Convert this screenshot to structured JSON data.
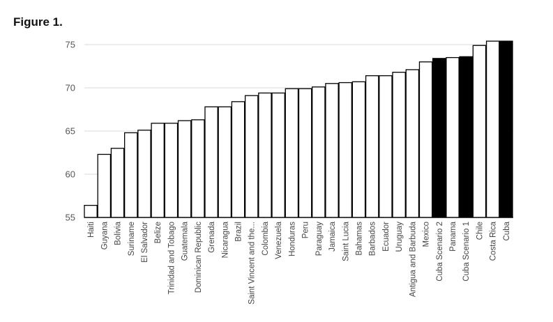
{
  "figure_label": "Figure 1.",
  "chart_data": {
    "type": "bar",
    "categories": [
      "Haiti",
      "Guyana",
      "Bolivia",
      "Suriname",
      "El Salvador",
      "Belize",
      "Trinidad and Tobago",
      "Guatemala",
      "Dominican Republic",
      "Grenada",
      "Nicaragua",
      "Brazil",
      "Saint Vincent and the...",
      "Colombia",
      "Venezuela",
      "Honduras",
      "Peru",
      "Paraguay",
      "Jamaica",
      "Saint Lucia",
      "Bahamas",
      "Barbados",
      "Ecuador",
      "Uruguay",
      "Antigua and Barbuda",
      "Mexico",
      "Cuba Scenario 2",
      "Panama",
      "Cuba Scenario 1",
      "Chile",
      "Costa Rica",
      "Cuba"
    ],
    "values": [
      56.4,
      62.3,
      63.0,
      64.8,
      65.1,
      65.9,
      65.9,
      66.2,
      66.3,
      67.8,
      67.8,
      68.4,
      69.1,
      69.4,
      69.4,
      69.9,
      69.9,
      70.1,
      70.5,
      70.6,
      70.7,
      71.4,
      71.4,
      71.8,
      72.1,
      73.0,
      73.4,
      73.5,
      73.6,
      74.9,
      75.4,
      75.4
    ],
    "highlighted": [
      "Cuba Scenario 2",
      "Cuba Scenario 1",
      "Cuba"
    ],
    "ylim": [
      55,
      75
    ],
    "yticks": [
      55,
      60,
      65,
      70,
      75
    ],
    "grid": true,
    "colors": {
      "bar": "#ffffff",
      "bar_highlight": "#000000",
      "bar_stroke": "#000000",
      "grid": "#d9d9d9"
    }
  }
}
